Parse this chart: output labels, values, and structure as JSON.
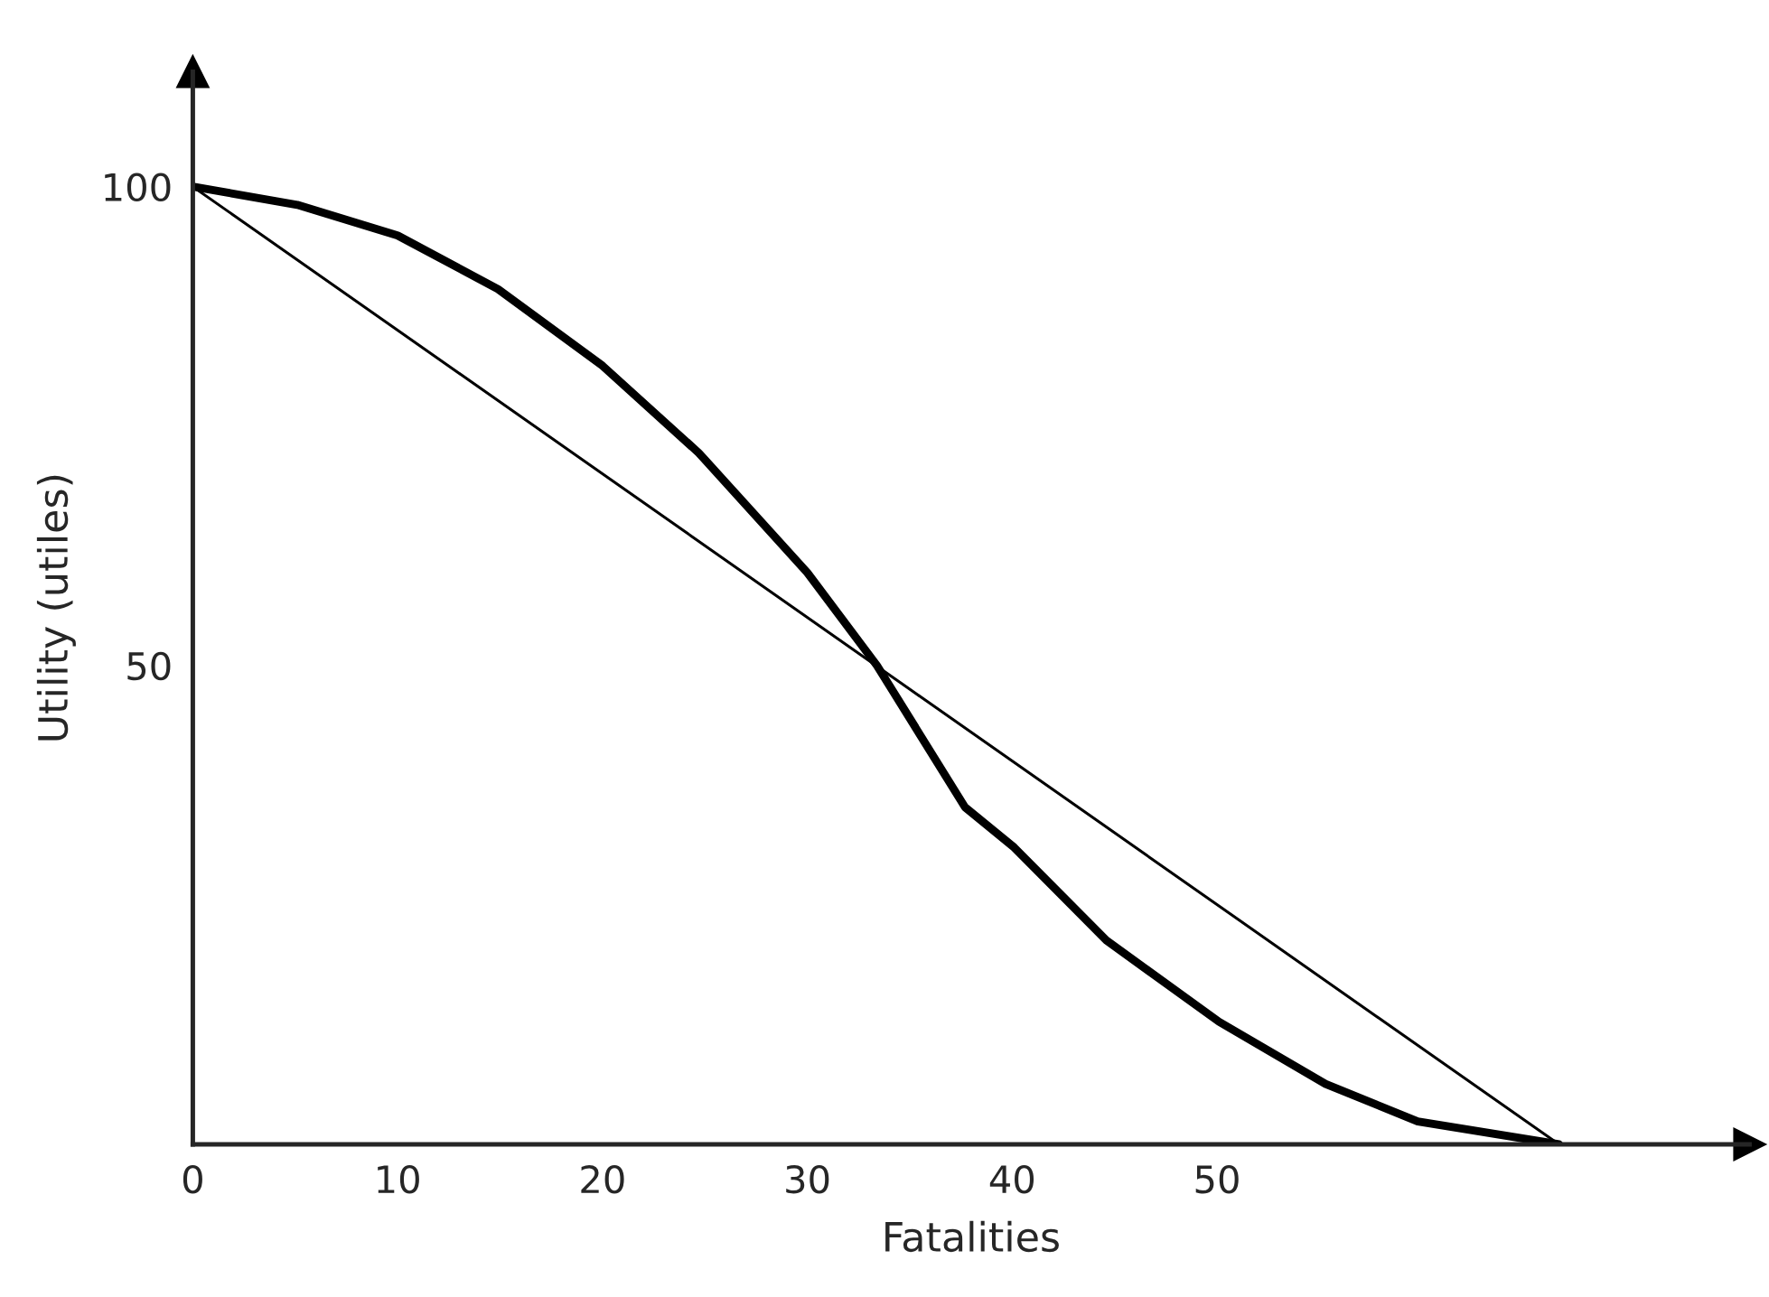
{
  "chart_data": {
    "type": "line",
    "xlabel": "Fatalities",
    "ylabel": "Utility (utiles)",
    "series": [
      {
        "color": "#000000",
        "x": [
          0,
          5.1,
          10,
          14.9,
          20,
          24.7,
          30,
          33.4,
          37.7,
          40.1,
          44.6,
          50.1,
          55.3,
          59.8,
          66.7
        ],
        "values": [
          100,
          98.1,
          94.9,
          89.3,
          81.3,
          72.2,
          59.7,
          50,
          35.2,
          31,
          21.3,
          12.8,
          6.3,
          2.4,
          0
        ]
      },
      {
        "color": "#000000",
        "x": [
          0,
          66.7
        ],
        "values": [
          100,
          0
        ]
      }
    ],
    "xlim": [
      0,
      76
    ],
    "ylim": [
      0,
      112
    ],
    "xticks": [
      0,
      10,
      20,
      30,
      40,
      50
    ],
    "yticks": [
      50,
      100
    ],
    "grid": false,
    "legend": false,
    "marker": "none",
    "line_style": "solid"
  }
}
